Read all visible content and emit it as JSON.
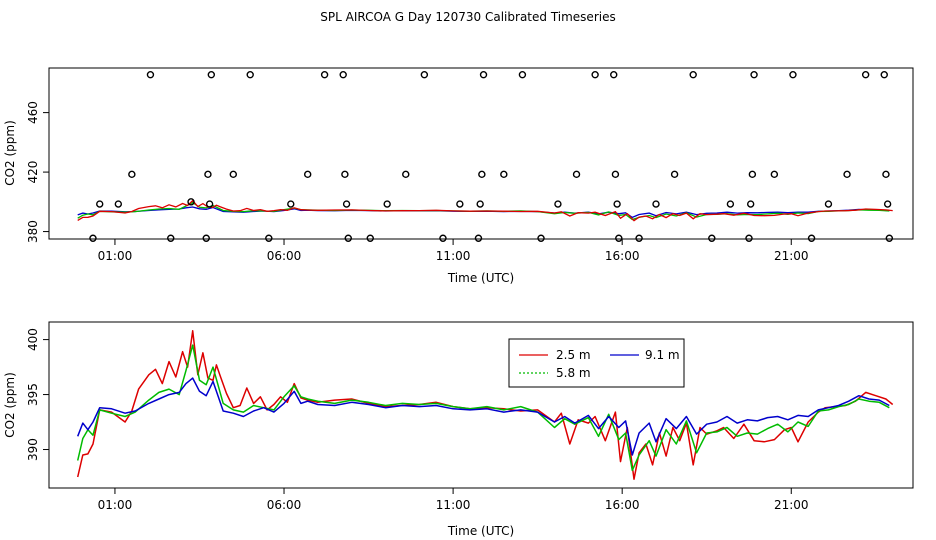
{
  "figure": {
    "title": "SPL AIRCOA G  Day 120730  Calibrated Timeseries"
  },
  "chart_data": [
    {
      "type": "scatter",
      "id": "top",
      "xlabel": "Time (UTC)",
      "ylabel": "CO2 (ppm)",
      "x_ticks": [
        1,
        6,
        11,
        16,
        21
      ],
      "x_tick_labels": [
        "01:00",
        "06:00",
        "11:00",
        "16:00",
        "21:00"
      ],
      "y_ticks": [
        380,
        420,
        460
      ],
      "y_tick_labels": [
        "380",
        "420",
        "460"
      ],
      "xlim": [
        -0.95,
        24.6
      ],
      "ylim": [
        375,
        490
      ],
      "calibration_points": [
        {
          "x": 0.35,
          "y": 375.5
        },
        {
          "x": 0.55,
          "y": 398.5
        },
        {
          "x": 1.1,
          "y": 398.5
        },
        {
          "x": 1.5,
          "y": 418.5
        },
        {
          "x": 2.05,
          "y": 485.5
        },
        {
          "x": 2.65,
          "y": 375.5
        },
        {
          "x": 3.25,
          "y": 400
        },
        {
          "x": 3.7,
          "y": 375.5
        },
        {
          "x": 3.75,
          "y": 418.5
        },
        {
          "x": 3.8,
          "y": 398.5
        },
        {
          "x": 3.85,
          "y": 485.5
        },
        {
          "x": 4.5,
          "y": 418.5
        },
        {
          "x": 5.0,
          "y": 485.5
        },
        {
          "x": 5.55,
          "y": 375.5
        },
        {
          "x": 6.2,
          "y": 398.5
        },
        {
          "x": 6.7,
          "y": 418.5
        },
        {
          "x": 7.2,
          "y": 485.5
        },
        {
          "x": 7.75,
          "y": 485.5
        },
        {
          "x": 7.8,
          "y": 418.5
        },
        {
          "x": 7.85,
          "y": 398.5
        },
        {
          "x": 7.9,
          "y": 375.5
        },
        {
          "x": 8.55,
          "y": 375.5
        },
        {
          "x": 9.05,
          "y": 398.5
        },
        {
          "x": 9.6,
          "y": 418.5
        },
        {
          "x": 10.15,
          "y": 485.5
        },
        {
          "x": 10.7,
          "y": 375.5
        },
        {
          "x": 11.2,
          "y": 398.5
        },
        {
          "x": 11.75,
          "y": 375.5
        },
        {
          "x": 11.8,
          "y": 398.5
        },
        {
          "x": 11.85,
          "y": 418.5
        },
        {
          "x": 11.9,
          "y": 485.5
        },
        {
          "x": 12.5,
          "y": 418.5
        },
        {
          "x": 13.05,
          "y": 485.5
        },
        {
          "x": 13.6,
          "y": 375.5
        },
        {
          "x": 14.1,
          "y": 398.5
        },
        {
          "x": 14.65,
          "y": 418.5
        },
        {
          "x": 15.2,
          "y": 485.5
        },
        {
          "x": 15.75,
          "y": 485.5
        },
        {
          "x": 15.8,
          "y": 418.5
        },
        {
          "x": 15.85,
          "y": 398.5
        },
        {
          "x": 15.9,
          "y": 375.5
        },
        {
          "x": 16.5,
          "y": 375.5
        },
        {
          "x": 17.0,
          "y": 398.5
        },
        {
          "x": 17.55,
          "y": 418.5
        },
        {
          "x": 18.1,
          "y": 485.5
        },
        {
          "x": 18.65,
          "y": 375.5
        },
        {
          "x": 19.2,
          "y": 398.5
        },
        {
          "x": 19.75,
          "y": 375.5
        },
        {
          "x": 19.8,
          "y": 398.5
        },
        {
          "x": 19.85,
          "y": 418.5
        },
        {
          "x": 19.9,
          "y": 485.5
        },
        {
          "x": 20.5,
          "y": 418.5
        },
        {
          "x": 21.05,
          "y": 485.5
        },
        {
          "x": 21.6,
          "y": 375.5
        },
        {
          "x": 22.1,
          "y": 398.5
        },
        {
          "x": 22.65,
          "y": 418.5
        },
        {
          "x": 23.2,
          "y": 485.5
        },
        {
          "x": 23.75,
          "y": 485.5
        },
        {
          "x": 23.8,
          "y": 418.5
        },
        {
          "x": 23.85,
          "y": 398.5
        },
        {
          "x": 23.9,
          "y": 375.5
        }
      ]
    },
    {
      "type": "line",
      "id": "bottom",
      "xlabel": "Time (UTC)",
      "ylabel": "CO2 (ppm)",
      "x_ticks": [
        1,
        6,
        11,
        16,
        21
      ],
      "x_tick_labels": [
        "01:00",
        "06:00",
        "11:00",
        "16:00",
        "21:00"
      ],
      "y_ticks": [
        390,
        395,
        400
      ],
      "y_tick_labels": [
        "390",
        "395",
        "400"
      ],
      "xlim": [
        -0.95,
        24.6
      ],
      "ylim": [
        386.5,
        401.6
      ],
      "legend": {
        "placement": "top-center",
        "entries": [
          {
            "label": "2.5 m",
            "color": "#dd0000"
          },
          {
            "label": "5.8 m",
            "color": "#00bb00",
            "dashed": true
          },
          {
            "label": "9.1 m",
            "color": "#0000cc"
          }
        ]
      },
      "series": [
        {
          "name": "2.5 m",
          "color": "#dd0000",
          "x": [
            -0.1,
            0.05,
            0.2,
            0.35,
            0.55,
            0.9,
            1.3,
            1.5,
            1.7,
            2.0,
            2.2,
            2.4,
            2.6,
            2.8,
            3.0,
            3.15,
            3.3,
            3.45,
            3.6,
            3.75,
            3.9,
            4.0,
            4.1,
            4.3,
            4.5,
            4.7,
            4.9,
            5.1,
            5.3,
            5.5,
            5.7,
            5.9,
            6.1,
            6.3,
            6.5,
            6.7,
            7.0,
            7.5,
            8.0,
            8.5,
            9.0,
            9.5,
            10.0,
            10.5,
            11.0,
            11.5,
            12.0,
            12.5,
            13.0,
            13.5,
            14.0,
            14.2,
            14.45,
            14.7,
            15.0,
            15.2,
            15.5,
            15.8,
            15.95,
            16.15,
            16.35,
            16.5,
            16.7,
            16.9,
            17.1,
            17.3,
            17.5,
            17.7,
            17.9,
            18.1,
            18.3,
            18.5,
            18.8,
            19.0,
            19.3,
            19.6,
            19.9,
            20.2,
            20.5,
            20.8,
            21.0,
            21.2,
            21.5,
            21.8,
            22.0,
            22.3,
            22.6,
            22.9,
            23.2,
            23.5,
            23.8,
            24.0
          ],
          "values": [
            387.5,
            389.5,
            389.6,
            390.5,
            393.6,
            393.4,
            392.5,
            393.5,
            395.5,
            396.8,
            397.3,
            396.0,
            398.0,
            396.6,
            398.9,
            397.5,
            400.8,
            396.8,
            398.8,
            396.5,
            396.3,
            397.7,
            396.8,
            395.1,
            393.8,
            394.0,
            395.6,
            394.2,
            394.8,
            393.6,
            394.1,
            394.8,
            394.3,
            396.0,
            394.7,
            394.5,
            394.3,
            394.5,
            394.6,
            394.2,
            393.9,
            394.0,
            394.1,
            394.3,
            393.9,
            393.7,
            393.8,
            393.7,
            393.5,
            393.6,
            392.5,
            393.3,
            390.5,
            392.7,
            392.4,
            393.0,
            390.8,
            393.4,
            388.9,
            392.0,
            387.3,
            389.7,
            390.5,
            388.6,
            391.5,
            389.4,
            392.0,
            390.8,
            392.4,
            388.6,
            392.0,
            391.4,
            391.7,
            392.0,
            391.0,
            392.3,
            390.8,
            390.7,
            390.9,
            391.8,
            392.0,
            390.7,
            392.5,
            393.4,
            393.8,
            393.9,
            394.0,
            394.4,
            395.2,
            394.9,
            394.6,
            394.1
          ]
        },
        {
          "name": "5.8 m",
          "color": "#00bb00",
          "dashed": true,
          "x": [
            -0.1,
            0.05,
            0.2,
            0.35,
            0.55,
            0.9,
            1.3,
            1.6,
            2.0,
            2.3,
            2.6,
            2.9,
            3.1,
            3.3,
            3.5,
            3.7,
            3.9,
            4.2,
            4.5,
            4.8,
            5.1,
            5.4,
            5.7,
            6.0,
            6.3,
            6.5,
            6.7,
            7.0,
            7.5,
            8.0,
            8.5,
            9.0,
            9.5,
            10.0,
            10.5,
            11.0,
            11.5,
            12.0,
            12.5,
            13.0,
            13.5,
            14.0,
            14.3,
            14.6,
            15.0,
            15.3,
            15.6,
            15.9,
            16.1,
            16.3,
            16.5,
            16.8,
            17.0,
            17.3,
            17.6,
            17.9,
            18.2,
            18.5,
            18.8,
            19.1,
            19.4,
            19.7,
            20.0,
            20.3,
            20.6,
            20.9,
            21.2,
            21.5,
            21.8,
            22.1,
            22.4,
            22.7,
            23.0,
            23.3,
            23.6,
            23.9
          ],
          "values": [
            389.0,
            391.0,
            391.8,
            391.3,
            393.6,
            393.3,
            393.0,
            393.4,
            394.5,
            395.2,
            395.5,
            395.0,
            397.2,
            399.5,
            396.3,
            395.9,
            397.5,
            394.2,
            393.6,
            393.4,
            394.0,
            393.8,
            393.6,
            394.8,
            395.8,
            394.8,
            394.6,
            394.4,
            394.2,
            394.5,
            394.3,
            394.0,
            394.2,
            394.1,
            394.2,
            393.9,
            393.7,
            393.9,
            393.6,
            393.9,
            393.4,
            392.0,
            392.8,
            392.3,
            392.9,
            391.2,
            393.2,
            390.9,
            391.5,
            388.1,
            389.5,
            390.8,
            389.4,
            391.8,
            390.5,
            392.6,
            389.7,
            391.5,
            391.6,
            392.0,
            391.2,
            391.5,
            391.4,
            391.9,
            392.3,
            391.6,
            392.5,
            392.1,
            393.5,
            393.6,
            393.9,
            394.1,
            394.6,
            394.4,
            394.3,
            393.8
          ]
        },
        {
          "name": "9.1 m",
          "color": "#0000cc",
          "x": [
            -0.1,
            0.05,
            0.2,
            0.35,
            0.55,
            0.9,
            1.3,
            1.6,
            2.0,
            2.3,
            2.6,
            2.9,
            3.1,
            3.3,
            3.5,
            3.7,
            3.9,
            4.2,
            4.5,
            4.8,
            5.1,
            5.4,
            5.7,
            6.0,
            6.3,
            6.5,
            6.7,
            7.0,
            7.5,
            8.0,
            8.5,
            9.0,
            9.5,
            10.0,
            10.5,
            11.0,
            11.5,
            12.0,
            12.5,
            13.0,
            13.5,
            14.0,
            14.3,
            14.6,
            15.0,
            15.3,
            15.6,
            15.9,
            16.1,
            16.3,
            16.5,
            16.8,
            17.0,
            17.3,
            17.6,
            17.9,
            18.2,
            18.5,
            18.8,
            19.1,
            19.4,
            19.7,
            20.0,
            20.3,
            20.6,
            20.9,
            21.2,
            21.5,
            21.8,
            22.1,
            22.4,
            22.7,
            23.0,
            23.3,
            23.6,
            23.9
          ],
          "values": [
            391.2,
            392.4,
            391.8,
            392.5,
            393.8,
            393.7,
            393.3,
            393.5,
            394.2,
            394.6,
            395.0,
            395.2,
            396.0,
            396.5,
            395.3,
            394.9,
            396.2,
            393.5,
            393.3,
            393.0,
            393.5,
            393.8,
            393.4,
            394.2,
            395.3,
            394.2,
            394.4,
            394.1,
            394.0,
            394.3,
            394.1,
            393.8,
            394.0,
            393.9,
            394.0,
            393.7,
            393.6,
            393.7,
            393.4,
            393.6,
            393.4,
            392.5,
            393.0,
            392.4,
            393.1,
            391.9,
            393.0,
            392.0,
            392.6,
            389.5,
            391.5,
            392.4,
            390.7,
            392.8,
            391.9,
            393.0,
            391.4,
            392.3,
            392.5,
            393.0,
            392.4,
            392.7,
            392.6,
            392.9,
            393.0,
            392.7,
            393.1,
            393.0,
            393.6,
            393.8,
            394.0,
            394.4,
            394.9,
            394.6,
            394.5,
            394.0
          ]
        }
      ]
    }
  ]
}
